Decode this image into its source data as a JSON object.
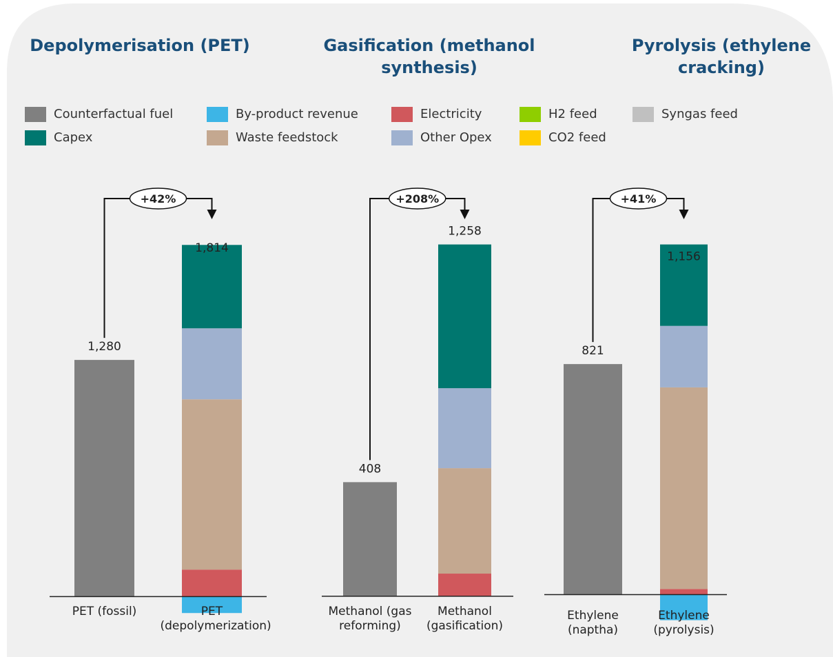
{
  "legend": [
    {
      "name": "Counterfactual fuel",
      "color": "#808080"
    },
    {
      "name": "Capex",
      "color": "#00776f"
    },
    {
      "name": "By-product revenue",
      "color": "#3db5e6"
    },
    {
      "name": "Waste feedstock",
      "color": "#c4a890"
    },
    {
      "name": "Electricity",
      "color": "#d0585c"
    },
    {
      "name": "Other Opex",
      "color": "#9fb1cf"
    },
    {
      "name": "H2 feed",
      "color": "#8fce00"
    },
    {
      "name": "CO2 feed",
      "color": "#ffcc00"
    },
    {
      "name": "Syngas feed",
      "color": "#c0c0c0"
    }
  ],
  "chart_data": [
    {
      "type": "stacked_bar",
      "title": "Depolymerisation (PET)",
      "categories": [
        "PET (fossil)",
        "PET (depolymerization)"
      ],
      "values": [
        1280,
        1814
      ],
      "value_labels": [
        "1,280",
        "1,814"
      ],
      "annotation": "+42%",
      "ylim": [
        -200,
        2000
      ],
      "series": [
        {
          "values": [
            1280,
            0
          ]
        },
        {
          "values": [
            0,
            451
          ]
        },
        {
          "values": [
            0,
            -89
          ]
        },
        {
          "values": [
            0,
            921
          ]
        },
        {
          "values": [
            0,
            146
          ]
        },
        {
          "values": [
            0,
            384
          ]
        },
        {
          "values": [
            0,
            0
          ]
        },
        {
          "values": [
            0,
            0
          ]
        },
        {
          "values": [
            0,
            0
          ]
        }
      ]
    },
    {
      "type": "stacked_bar",
      "title": "Gasification (methanol synthesis)",
      "categories": [
        "Methanol (gas reforming)",
        "Methanol (gasification)"
      ],
      "values": [
        408,
        1258
      ],
      "value_labels": [
        "408",
        "1,258"
      ],
      "annotation": "+208%",
      "ylim": [
        -200,
        1400
      ],
      "series": [
        {
          "values": [
            408,
            0
          ]
        },
        {
          "values": [
            0,
            514
          ]
        },
        {
          "values": [
            0,
            0
          ]
        },
        {
          "values": [
            0,
            377
          ]
        },
        {
          "values": [
            0,
            81
          ]
        },
        {
          "values": [
            0,
            286
          ]
        },
        {
          "values": [
            0,
            0
          ]
        },
        {
          "values": [
            0,
            0
          ]
        },
        {
          "values": [
            0,
            0
          ]
        }
      ]
    },
    {
      "type": "stacked_bar",
      "title": "Pyrolysis (ethylene cracking)",
      "categories": [
        "Ethylene (naptha)",
        "Ethylene (pyrolysis)"
      ],
      "values": [
        821,
        1156
      ],
      "value_labels": [
        "821",
        "1,156"
      ],
      "annotation": "+41%",
      "ylim": [
        -200,
        1300
      ],
      "series": [
        {
          "values": [
            821,
            0
          ]
        },
        {
          "values": [
            0,
            290
          ]
        },
        {
          "values": [
            0,
            -91
          ]
        },
        {
          "values": [
            0,
            718
          ]
        },
        {
          "values": [
            0,
            20
          ]
        },
        {
          "values": [
            0,
            219
          ]
        },
        {
          "values": [
            0,
            0
          ]
        },
        {
          "values": [
            0,
            0
          ]
        },
        {
          "values": [
            0,
            0
          ]
        }
      ]
    }
  ]
}
